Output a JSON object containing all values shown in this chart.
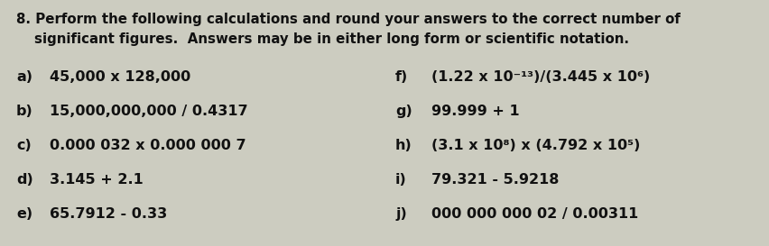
{
  "bg_color": "#ccccc0",
  "title_number": "8.",
  "title_line1": " Perform the following calculations and round your answers to the correct number of",
  "title_line2": "significant figures.  Answers may be in either long form or scientific notation.",
  "left_items": [
    {
      "label": "a)",
      "text": "45,000 x 128,000"
    },
    {
      "label": "b)",
      "text": "15,000,000,000 / 0.4317"
    },
    {
      "label": "c)",
      "text": "0.000 032 x 0.000 000 7"
    },
    {
      "label": "d)",
      "text": "3.145 + 2.1"
    },
    {
      "label": "e)",
      "text": "65.7912 - 0.33"
    }
  ],
  "right_items": [
    {
      "label": "f)",
      "text": "(1.22 x 10⁻¹³)/(3.445 x 10⁶)"
    },
    {
      "label": "g)",
      "text": "99.999 + 1"
    },
    {
      "label": "h)",
      "text": "(3.1 x 10⁸) x (4.792 x 10⁵)"
    },
    {
      "label": "i)",
      "text": "79.321 - 5.9218"
    },
    {
      "label": "j)",
      "text": "000 000 000 02 / 0.00311"
    }
  ],
  "font_color": "#111111",
  "title_fontsize": 10.8,
  "item_fontsize": 11.5,
  "fig_width": 8.52,
  "fig_height": 2.73,
  "dpi": 100
}
